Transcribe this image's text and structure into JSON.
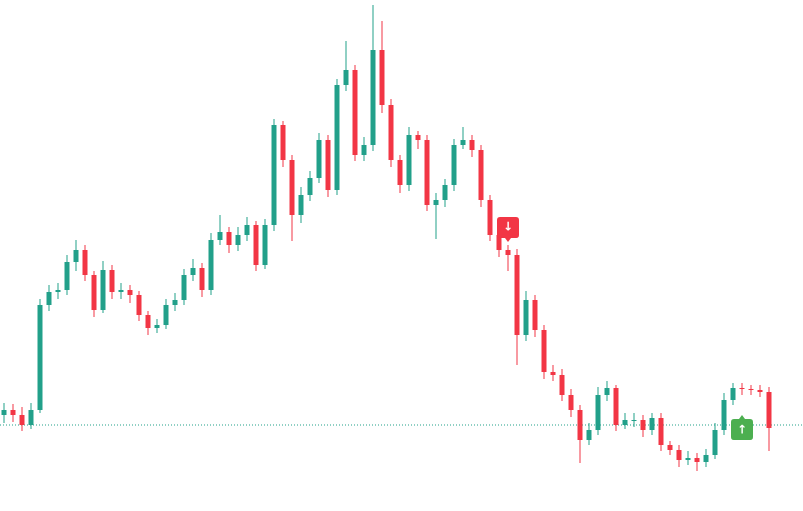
{
  "chart_data": {
    "type": "candlestick",
    "ylim": [
      0,
      511
    ],
    "up_color": "#22a08a",
    "down_color": "#f23645",
    "price_line": 86,
    "price_line_color": "#22a08a",
    "candles": [
      [
        96,
        108,
        88,
        101
      ],
      [
        101,
        107,
        89,
        96
      ],
      [
        96,
        104,
        80,
        86
      ],
      [
        86,
        108,
        82,
        101
      ],
      [
        101,
        212,
        98,
        206
      ],
      [
        206,
        226,
        200,
        219
      ],
      [
        219,
        228,
        212,
        221
      ],
      [
        221,
        256,
        216,
        249
      ],
      [
        249,
        271,
        240,
        261
      ],
      [
        261,
        266,
        230,
        236
      ],
      [
        236,
        240,
        194,
        201
      ],
      [
        201,
        250,
        198,
        241
      ],
      [
        241,
        246,
        212,
        219
      ],
      [
        219,
        228,
        212,
        221
      ],
      [
        221,
        226,
        208,
        216
      ],
      [
        216,
        220,
        190,
        196
      ],
      [
        196,
        200,
        176,
        183
      ],
      [
        183,
        192,
        178,
        186
      ],
      [
        186,
        212,
        182,
        206
      ],
      [
        206,
        218,
        200,
        211
      ],
      [
        211,
        242,
        206,
        236
      ],
      [
        236,
        252,
        230,
        243
      ],
      [
        243,
        248,
        214,
        221
      ],
      [
        221,
        278,
        216,
        271
      ],
      [
        271,
        296,
        266,
        279
      ],
      [
        279,
        284,
        258,
        266
      ],
      [
        266,
        284,
        260,
        276
      ],
      [
        276,
        294,
        270,
        286
      ],
      [
        286,
        290,
        240,
        246
      ],
      [
        246,
        292,
        242,
        286
      ],
      [
        286,
        392,
        280,
        386
      ],
      [
        386,
        390,
        344,
        351
      ],
      [
        351,
        356,
        270,
        296
      ],
      [
        296,
        324,
        288,
        316
      ],
      [
        316,
        340,
        310,
        333
      ],
      [
        333,
        378,
        328,
        371
      ],
      [
        371,
        376,
        314,
        321
      ],
      [
        321,
        432,
        316,
        426
      ],
      [
        426,
        470,
        420,
        441
      ],
      [
        441,
        446,
        350,
        356
      ],
      [
        356,
        374,
        350,
        366
      ],
      [
        366,
        506,
        360,
        461
      ],
      [
        461,
        490,
        398,
        406
      ],
      [
        406,
        412,
        344,
        351
      ],
      [
        351,
        356,
        318,
        326
      ],
      [
        326,
        384,
        320,
        376
      ],
      [
        376,
        380,
        362,
        371
      ],
      [
        371,
        376,
        300,
        306
      ],
      [
        306,
        318,
        272,
        311
      ],
      [
        311,
        332,
        304,
        326
      ],
      [
        326,
        372,
        320,
        366
      ],
      [
        366,
        384,
        362,
        371
      ],
      [
        371,
        376,
        354,
        361
      ],
      [
        361,
        366,
        304,
        311
      ],
      [
        311,
        316,
        270,
        276
      ],
      [
        276,
        282,
        254,
        261
      ],
      [
        261,
        266,
        240,
        256
      ],
      [
        256,
        262,
        146,
        176
      ],
      [
        176,
        220,
        170,
        211
      ],
      [
        211,
        216,
        174,
        181
      ],
      [
        181,
        186,
        132,
        139
      ],
      [
        139,
        146,
        130,
        136
      ],
      [
        136,
        142,
        110,
        116
      ],
      [
        116,
        122,
        94,
        101
      ],
      [
        101,
        106,
        48,
        71
      ],
      [
        71,
        88,
        66,
        81
      ],
      [
        81,
        124,
        76,
        116
      ],
      [
        116,
        130,
        110,
        123
      ],
      [
        123,
        126,
        80,
        86
      ],
      [
        86,
        98,
        82,
        91
      ],
      [
        91,
        98,
        84,
        91
      ],
      [
        91,
        96,
        74,
        81
      ],
      [
        81,
        98,
        76,
        93
      ],
      [
        93,
        98,
        60,
        66
      ],
      [
        66,
        70,
        56,
        61
      ],
      [
        61,
        66,
        44,
        51
      ],
      [
        51,
        60,
        46,
        53
      ],
      [
        53,
        58,
        40,
        49
      ],
      [
        49,
        62,
        44,
        56
      ],
      [
        56,
        88,
        52,
        81
      ],
      [
        81,
        118,
        76,
        111
      ],
      [
        111,
        128,
        106,
        123
      ],
      [
        123,
        128,
        116,
        122
      ],
      [
        122,
        126,
        116,
        121
      ],
      [
        121,
        126,
        114,
        119
      ],
      [
        119,
        124,
        60,
        83
      ]
    ],
    "markers": [
      {
        "index": 56,
        "label": "↓",
        "color": "#f23645",
        "position": "above"
      },
      {
        "index": 82,
        "label": "↑",
        "color": "#4caf50",
        "position": "below"
      }
    ]
  }
}
